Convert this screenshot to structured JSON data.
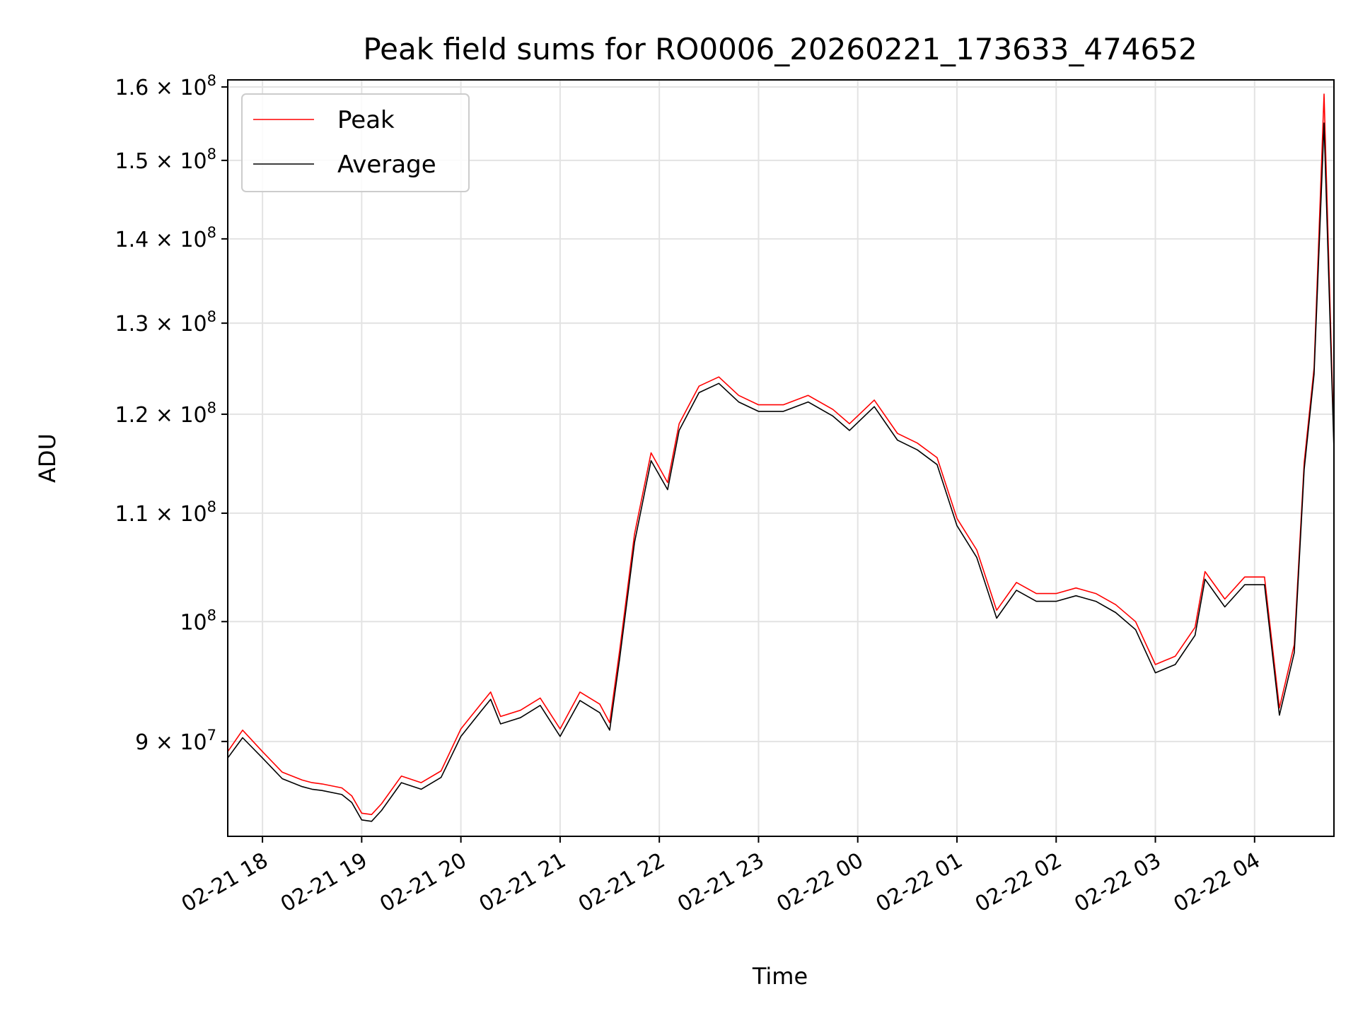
{
  "chart_data": {
    "type": "line",
    "title": "Peak field sums for RO0006_20260221_173633_474652",
    "xlabel": "Time",
    "ylabel": "ADU",
    "y_scale": "log",
    "ylim": [
      82800000,
      161000000
    ],
    "xlim": [
      "2026-02-21 17:39",
      "2026-02-22 04:48"
    ],
    "grid": true,
    "legend_placement": "upper-left",
    "x_tick_labels": [
      "02-21 18",
      "02-21 19",
      "02-21 20",
      "02-21 21",
      "02-21 22",
      "02-21 23",
      "02-22 00",
      "02-22 01",
      "02-22 02",
      "02-22 03",
      "02-22 04"
    ],
    "x_ticks": [
      "2026-02-21 18:00",
      "2026-02-21 19:00",
      "2026-02-21 20:00",
      "2026-02-21 21:00",
      "2026-02-21 22:00",
      "2026-02-21 23:00",
      "2026-02-22 00:00",
      "2026-02-22 01:00",
      "2026-02-22 02:00",
      "2026-02-22 03:00",
      "2026-02-22 04:00"
    ],
    "y_ticks": [
      {
        "value": 90000000,
        "mantissa": "9",
        "exponent": "7"
      },
      {
        "value": 100000000,
        "mantissa": "",
        "exponent": "8"
      },
      {
        "value": 110000000,
        "mantissa": "1.1",
        "exponent": "8"
      },
      {
        "value": 120000000,
        "mantissa": "1.2",
        "exponent": "8"
      },
      {
        "value": 130000000,
        "mantissa": "1.3",
        "exponent": "8"
      },
      {
        "value": 140000000,
        "mantissa": "1.4",
        "exponent": "8"
      },
      {
        "value": 150000000,
        "mantissa": "1.5",
        "exponent": "8"
      },
      {
        "value": 160000000,
        "mantissa": "1.6",
        "exponent": "8"
      }
    ],
    "series": [
      {
        "name": "Peak",
        "color": "#ff0000",
        "x": [
          "2026-02-21 17:39",
          "2026-02-21 17:48",
          "2026-02-21 18:00",
          "2026-02-21 18:12",
          "2026-02-21 18:24",
          "2026-02-21 18:30",
          "2026-02-21 18:36",
          "2026-02-21 18:48",
          "2026-02-21 18:54",
          "2026-02-21 19:00",
          "2026-02-21 19:06",
          "2026-02-21 19:12",
          "2026-02-21 19:24",
          "2026-02-21 19:36",
          "2026-02-21 19:48",
          "2026-02-21 20:00",
          "2026-02-21 20:12",
          "2026-02-21 20:18",
          "2026-02-21 20:24",
          "2026-02-21 20:36",
          "2026-02-21 20:48",
          "2026-02-21 21:00",
          "2026-02-21 21:12",
          "2026-02-21 21:24",
          "2026-02-21 21:30",
          "2026-02-21 21:36",
          "2026-02-21 21:45",
          "2026-02-21 21:55",
          "2026-02-21 22:05",
          "2026-02-21 22:12",
          "2026-02-21 22:24",
          "2026-02-21 22:36",
          "2026-02-21 22:48",
          "2026-02-21 23:00",
          "2026-02-21 23:15",
          "2026-02-21 23:30",
          "2026-02-21 23:45",
          "2026-02-21 23:55",
          "2026-02-22 00:10",
          "2026-02-22 00:24",
          "2026-02-22 00:36",
          "2026-02-22 00:48",
          "2026-02-22 01:00",
          "2026-02-22 01:12",
          "2026-02-22 01:24",
          "2026-02-22 01:36",
          "2026-02-22 01:48",
          "2026-02-22 02:00",
          "2026-02-22 02:12",
          "2026-02-22 02:24",
          "2026-02-22 02:36",
          "2026-02-22 02:48",
          "2026-02-22 03:00",
          "2026-02-22 03:12",
          "2026-02-22 03:24",
          "2026-02-22 03:30",
          "2026-02-22 03:42",
          "2026-02-22 03:54",
          "2026-02-22 04:06",
          "2026-02-22 04:15",
          "2026-02-22 04:24",
          "2026-02-22 04:30",
          "2026-02-22 04:36",
          "2026-02-22 04:42",
          "2026-02-22 04:48"
        ],
        "y": [
          89200000,
          90900000,
          89200000,
          87600000,
          87000000,
          86800000,
          86700000,
          86400000,
          85800000,
          84500000,
          84400000,
          85200000,
          87300000,
          86800000,
          87700000,
          91000000,
          93000000,
          94000000,
          92000000,
          92500000,
          93500000,
          91000000,
          94000000,
          93000000,
          91500000,
          97500000,
          108000000,
          116000000,
          113000000,
          119000000,
          123000000,
          124000000,
          122000000,
          121000000,
          121000000,
          122000000,
          120500000,
          119000000,
          121500000,
          118000000,
          117000000,
          115500000,
          109500000,
          106500000,
          101000000,
          103500000,
          102500000,
          102500000,
          103000000,
          102500000,
          101500000,
          100000000,
          96300000,
          97000000,
          99500000,
          104500000,
          102000000,
          104000000,
          104000000,
          92700000,
          98000000,
          115000000,
          125000000,
          159000000,
          117000000
        ]
      },
      {
        "name": "Average",
        "color": "#000000",
        "x": [
          "2026-02-21 17:39",
          "2026-02-21 17:48",
          "2026-02-21 18:00",
          "2026-02-21 18:12",
          "2026-02-21 18:24",
          "2026-02-21 18:30",
          "2026-02-21 18:36",
          "2026-02-21 18:48",
          "2026-02-21 18:54",
          "2026-02-21 19:00",
          "2026-02-21 19:06",
          "2026-02-21 19:12",
          "2026-02-21 19:24",
          "2026-02-21 19:36",
          "2026-02-21 19:48",
          "2026-02-21 20:00",
          "2026-02-21 20:12",
          "2026-02-21 20:18",
          "2026-02-21 20:24",
          "2026-02-21 20:36",
          "2026-02-21 20:48",
          "2026-02-21 21:00",
          "2026-02-21 21:12",
          "2026-02-21 21:24",
          "2026-02-21 21:30",
          "2026-02-21 21:36",
          "2026-02-21 21:45",
          "2026-02-21 21:55",
          "2026-02-21 22:05",
          "2026-02-21 22:12",
          "2026-02-21 22:24",
          "2026-02-21 22:36",
          "2026-02-21 22:48",
          "2026-02-21 23:00",
          "2026-02-21 23:15",
          "2026-02-21 23:30",
          "2026-02-21 23:45",
          "2026-02-21 23:55",
          "2026-02-22 00:10",
          "2026-02-22 00:24",
          "2026-02-22 00:36",
          "2026-02-22 00:48",
          "2026-02-22 01:00",
          "2026-02-22 01:12",
          "2026-02-22 01:24",
          "2026-02-22 01:36",
          "2026-02-22 01:48",
          "2026-02-22 02:00",
          "2026-02-22 02:12",
          "2026-02-22 02:24",
          "2026-02-22 02:36",
          "2026-02-22 02:48",
          "2026-02-22 03:00",
          "2026-02-22 03:12",
          "2026-02-22 03:24",
          "2026-02-22 03:30",
          "2026-02-22 03:42",
          "2026-02-22 03:54",
          "2026-02-22 04:06",
          "2026-02-22 04:15",
          "2026-02-22 04:24",
          "2026-02-22 04:30",
          "2026-02-22 04:36",
          "2026-02-22 04:42",
          "2026-02-22 04:48"
        ],
        "y": [
          88700000,
          90300000,
          88700000,
          87100000,
          86500000,
          86300000,
          86200000,
          85900000,
          85300000,
          84000000,
          83900000,
          84700000,
          86800000,
          86300000,
          87200000,
          90400000,
          92400000,
          93400000,
          91400000,
          91900000,
          92900000,
          90400000,
          93300000,
          92300000,
          90900000,
          96800000,
          107200000,
          115200000,
          112300000,
          118300000,
          122300000,
          123300000,
          121300000,
          120300000,
          120300000,
          121300000,
          119800000,
          118300000,
          120800000,
          117300000,
          116300000,
          114800000,
          108800000,
          105800000,
          100300000,
          102800000,
          101800000,
          101800000,
          102300000,
          101800000,
          100800000,
          99300000,
          95600000,
          96300000,
          98800000,
          103800000,
          101300000,
          103300000,
          103300000,
          92100000,
          97300000,
          114300000,
          124300000,
          155000000,
          116300000
        ]
      }
    ]
  }
}
